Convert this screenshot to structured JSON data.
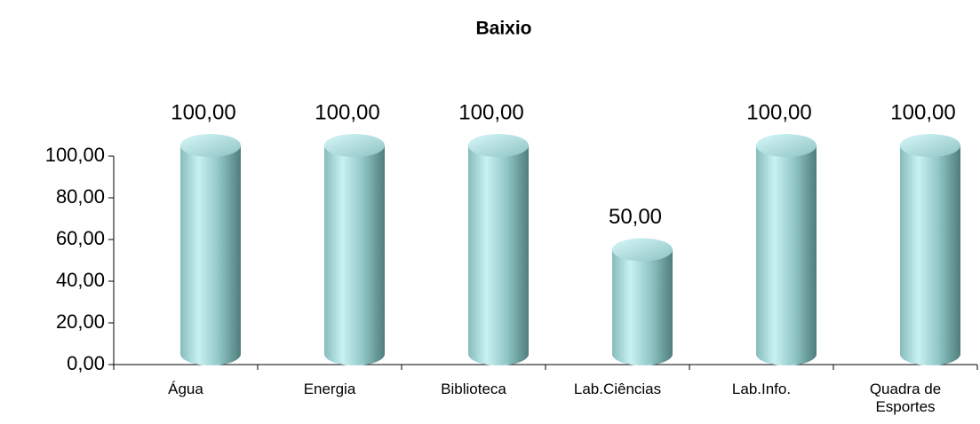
{
  "chart_data": {
    "type": "bar",
    "title": "Baixio",
    "categories": [
      "Água",
      "Energia",
      "Biblioteca",
      "Lab.Ciências",
      "Lab.Info.",
      "Quadra de Esportes"
    ],
    "values": [
      100,
      100,
      100,
      50,
      100,
      100
    ],
    "value_labels": [
      "100,00",
      "100,00",
      "100,00",
      "50,00",
      "100,00",
      "100,00"
    ],
    "color": "#8fc4c4",
    "ylim": [
      0,
      100
    ],
    "yticks": [
      {
        "value": 0,
        "label": "0,00"
      },
      {
        "value": 20,
        "label": "20,00"
      },
      {
        "value": 40,
        "label": "40,00"
      },
      {
        "value": 60,
        "label": "60,00"
      },
      {
        "value": 80,
        "label": "80,00"
      },
      {
        "value": 100,
        "label": "100,00"
      }
    ],
    "grid": false
  }
}
